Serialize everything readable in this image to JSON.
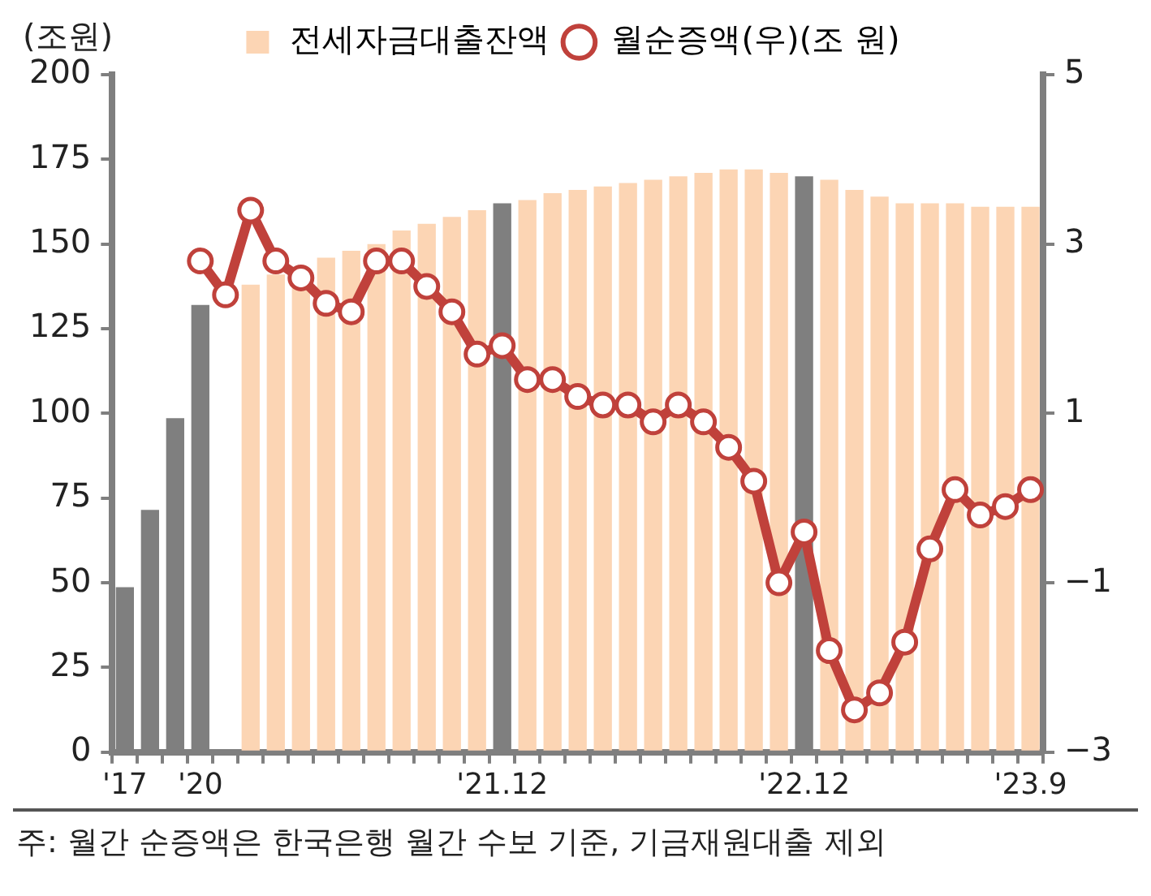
{
  "chart_data": {
    "type": "bar",
    "ylabel": "(조원)",
    "legend": "top",
    "categories": [
      "'17",
      null,
      null,
      "'20",
      null,
      null,
      null,
      null,
      null,
      null,
      null,
      null,
      null,
      null,
      null,
      "'21.12",
      null,
      null,
      null,
      null,
      null,
      null,
      null,
      null,
      null,
      null,
      null,
      "'22.12",
      null,
      null,
      null,
      null,
      null,
      null,
      null,
      null,
      "'23.9"
    ],
    "series": [
      {
        "name": "전세자금대출잔액",
        "color": "#fcd5b4",
        "colors": [
          "#7f7f7f",
          "#7f7f7f",
          "#7f7f7f",
          "#7f7f7f",
          "#fcd5b4",
          "#fcd5b4",
          "#fcd5b4",
          "#fcd5b4",
          "#fcd5b4",
          "#fcd5b4",
          "#fcd5b4",
          "#fcd5b4",
          "#fcd5b4",
          "#fcd5b4",
          "#fcd5b4",
          "#7f7f7f",
          "#fcd5b4",
          "#fcd5b4",
          "#fcd5b4",
          "#fcd5b4",
          "#fcd5b4",
          "#fcd5b4",
          "#fcd5b4",
          "#fcd5b4",
          "#fcd5b4",
          "#fcd5b4",
          "#fcd5b4",
          "#7f7f7f",
          "#fcd5b4",
          "#fcd5b4",
          "#fcd5b4",
          "#fcd5b4",
          "#fcd5b4",
          "#fcd5b4",
          "#fcd5b4",
          "#fcd5b4",
          "#fcd5b4"
        ],
        "values": [
          48.7,
          71.5,
          98.6,
          132,
          null,
          138,
          141,
          143,
          146,
          148,
          150,
          154,
          156,
          158,
          160,
          162,
          163,
          165,
          166,
          167,
          168,
          169,
          170,
          171,
          172,
          172,
          171,
          170,
          169,
          166,
          164,
          162,
          162,
          162,
          161,
          161,
          161
        ]
      },
      {
        "name": "월순증액(우)(조 원)",
        "type": "line",
        "axis": "y2",
        "color": "#c0413b",
        "marker": "circle",
        "line_style": "solid",
        "values": [
          null,
          null,
          null,
          2.8,
          2.4,
          3.4,
          2.8,
          2.6,
          2.3,
          2.2,
          2.8,
          2.8,
          2.5,
          2.2,
          1.7,
          1.8,
          1.4,
          1.4,
          1.2,
          1.1,
          1.1,
          0.9,
          1.1,
          0.9,
          0.6,
          0.2,
          -1.0,
          -0.4,
          -1.8,
          -2.5,
          -2.3,
          -1.7,
          -0.6,
          0.1,
          -0.2,
          -0.1,
          0.1
        ]
      }
    ],
    "ylim": [
      0,
      200
    ],
    "yticks": [
      0,
      25,
      50,
      75,
      100,
      125,
      150,
      175,
      200
    ],
    "y2lim": [
      -3,
      5
    ],
    "y2ticks": [
      -3,
      -1,
      1,
      3,
      5
    ],
    "annotations": [
      "주: 월간 순증액은 한국은행 월간 수보 기준, 기금재원대출 제외"
    ]
  }
}
